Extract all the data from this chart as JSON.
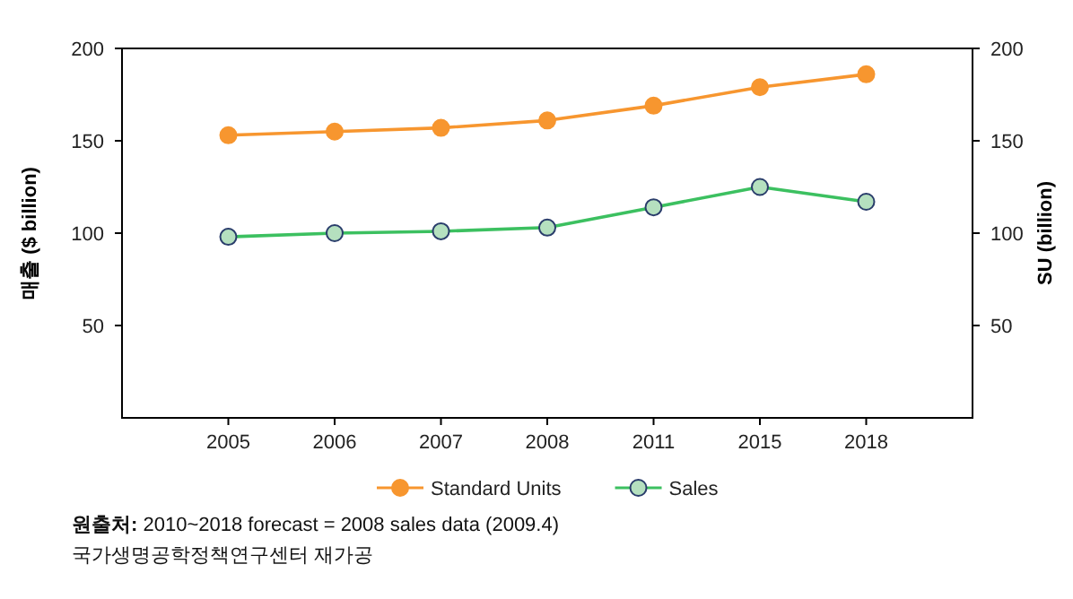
{
  "chart_data": {
    "type": "line",
    "categories": [
      "2005",
      "2006",
      "2007",
      "2008",
      "2011",
      "2015",
      "2018"
    ],
    "series": [
      {
        "name": "Standard Units",
        "color": "#f7962f",
        "values": [
          153,
          155,
          157,
          161,
          169,
          179,
          186
        ]
      },
      {
        "name": "Sales",
        "color": "#3cc060",
        "values": [
          98,
          100,
          101,
          103,
          114,
          125,
          117
        ]
      }
    ],
    "ylabel": "매출 ($ billion)",
    "y2label": "SU (billion)",
    "ylim": [
      0,
      200
    ],
    "yticks": [
      50,
      100,
      150,
      200
    ],
    "y2lim": [
      0,
      200
    ],
    "y2ticks": [
      50,
      100,
      150,
      200
    ],
    "marker": "circle",
    "grid": false,
    "legend": "bottom",
    "annotations": [
      "**원출처:** 2010~2018 forecast = 2008 sales data (2009.4)",
      "국가생명공학정책연구센터 재가공"
    ]
  }
}
